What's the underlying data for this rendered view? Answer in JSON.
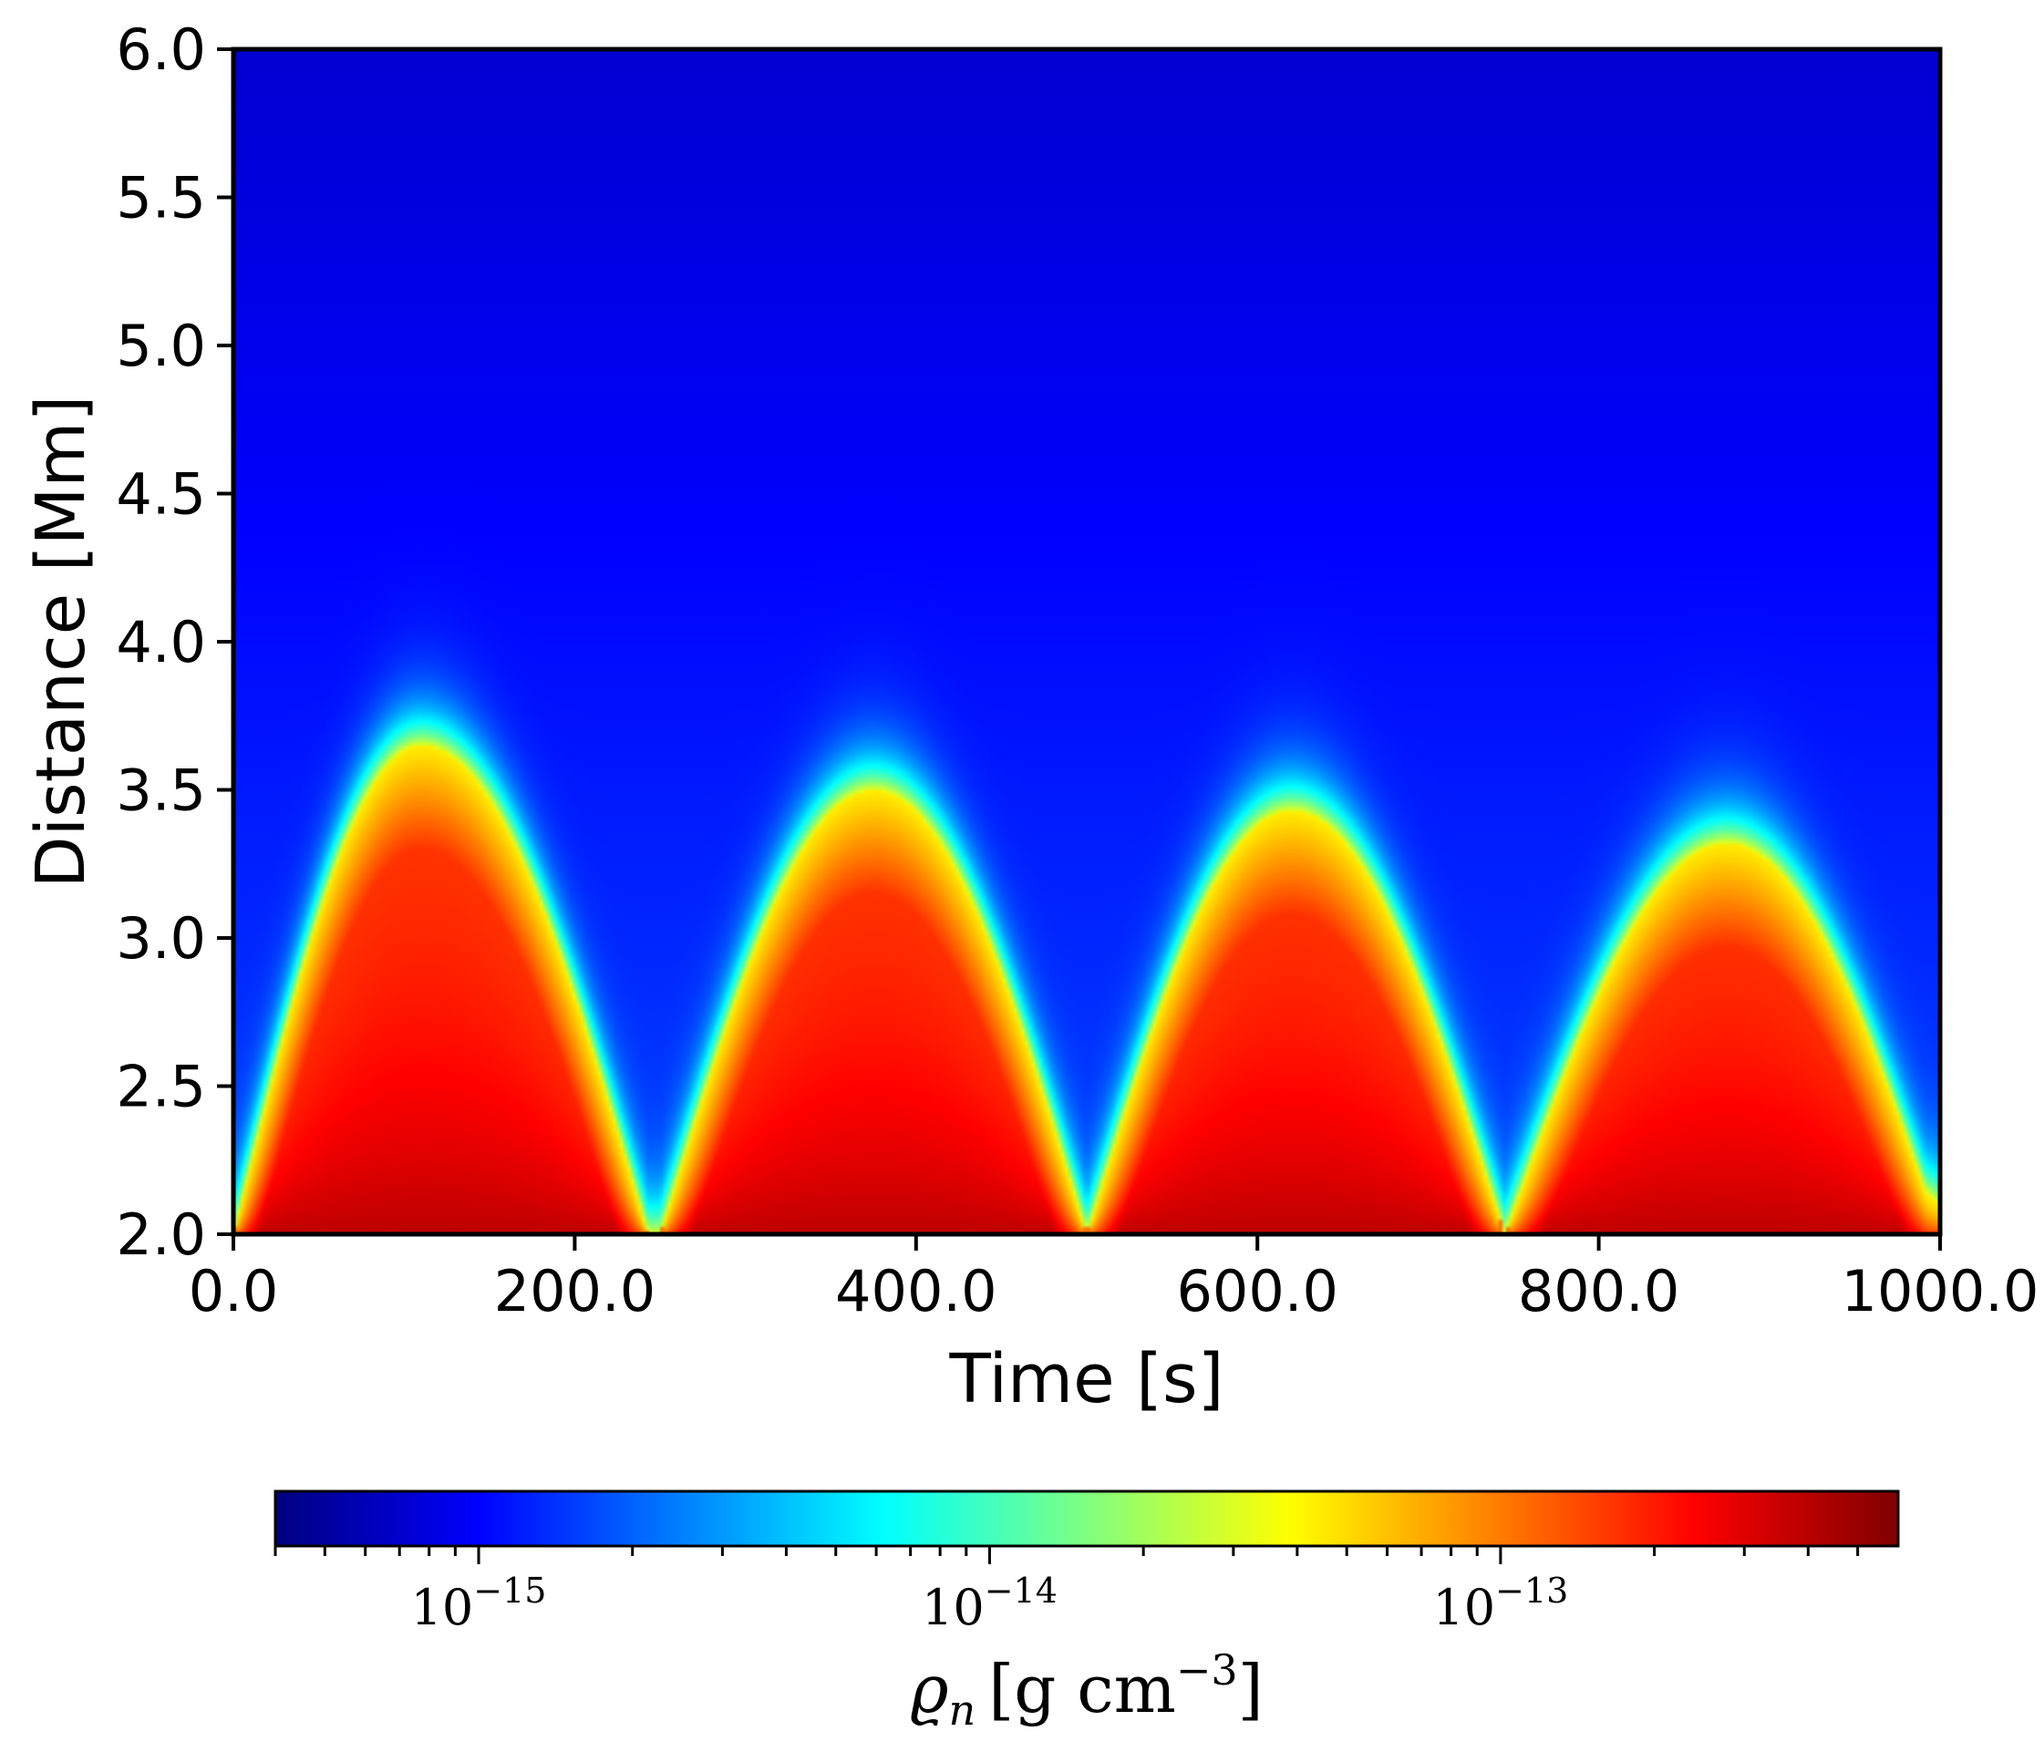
{
  "chart_data": {
    "type": "heatmap",
    "xlabel": "Time [s]",
    "ylabel": "Distance [Mm]",
    "xlim": [
      0,
      1000
    ],
    "ylim": [
      2.0,
      6.0
    ],
    "x_ticks": [
      "0.0",
      "200.0",
      "400.0",
      "600.0",
      "800.0",
      "1000.0"
    ],
    "x_tick_values": [
      0,
      200,
      400,
      600,
      800,
      1000
    ],
    "y_ticks": [
      "2.0",
      "2.5",
      "3.0",
      "3.5",
      "4.0",
      "4.5",
      "5.0",
      "5.5",
      "6.0"
    ],
    "y_tick_values": [
      2.0,
      2.5,
      3.0,
      3.5,
      4.0,
      4.5,
      5.0,
      5.5,
      6.0
    ],
    "colormap": "jet",
    "colorbar": {
      "scale": "log",
      "range": [
        4e-16,
        6e-13
      ],
      "label_base": "ϱ",
      "label_sub": "n",
      "label_units": "[g cm",
      "label_exp": "−3",
      "label_close": "]",
      "major_ticks": [
        {
          "value": 1e-15,
          "base": "10",
          "exp": "−15"
        },
        {
          "value": 1e-14,
          "base": "10",
          "exp": "−14"
        },
        {
          "value": 1e-13,
          "base": "10",
          "exp": "−13"
        }
      ]
    },
    "arches": [
      {
        "t_start": 0,
        "t_peak": 110,
        "t_end": 243,
        "peak_height": 3.65
      },
      {
        "t_start": 250,
        "t_peak": 375,
        "t_end": 500,
        "peak_height": 3.5
      },
      {
        "t_start": 500,
        "t_peak": 620,
        "t_end": 745,
        "peak_height": 3.43
      },
      {
        "t_start": 745,
        "t_peak": 875,
        "t_end": 1000,
        "peak_height": 3.32
      }
    ],
    "background_density": "low (~1e-15) above arches, decreasing with height"
  }
}
